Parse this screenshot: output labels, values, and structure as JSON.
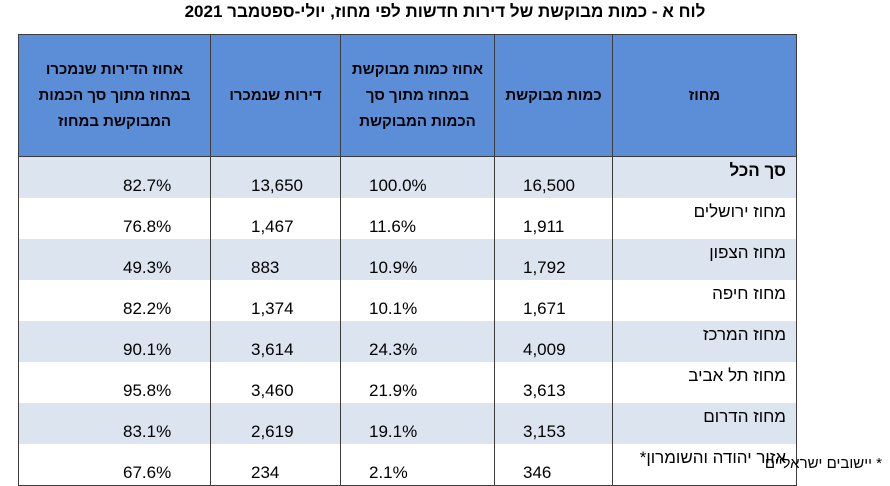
{
  "title": "לוח א - כמות מבוקשת של דירות חדשות לפי מחוז, יולי-ספטמבר 2021",
  "headers": {
    "district": "מחוז",
    "quantity": "כמות מבוקשת",
    "pct_of_total": "אחוז כמות מבוקשת במחוז מתוך סך הכמות המבוקשת",
    "sold": "דירות שנמכרו",
    "pct_sold": "אחוז הדירות שנמכרו במחוז מתוך סך הכמות המבוקשת במחוז"
  },
  "rows": [
    {
      "district": "סך הכל",
      "quantity": "16,500",
      "pct_of_total": "100.0%",
      "sold": "13,650",
      "pct_sold": "82.7%"
    },
    {
      "district": "מחוז ירושלים",
      "quantity": "1,911",
      "pct_of_total": "11.6%",
      "sold": "1,467",
      "pct_sold": "76.8%"
    },
    {
      "district": "מחוז הצפון",
      "quantity": "1,792",
      "pct_of_total": "10.9%",
      "sold": "883",
      "pct_sold": "49.3%"
    },
    {
      "district": "מחוז חיפה",
      "quantity": "1,671",
      "pct_of_total": "10.1%",
      "sold": "1,374",
      "pct_sold": "82.2%"
    },
    {
      "district": "מחוז המרכז",
      "quantity": "4,009",
      "pct_of_total": "24.3%",
      "sold": "3,614",
      "pct_sold": "90.1%"
    },
    {
      "district": "מחוז תל אביב",
      "quantity": "3,613",
      "pct_of_total": "21.9%",
      "sold": "3,460",
      "pct_sold": "95.8%"
    },
    {
      "district": "מחוז הדרום",
      "quantity": "3,153",
      "pct_of_total": "19.1%",
      "sold": "2,619",
      "pct_sold": "83.1%"
    },
    {
      "district": "אזור יהודה והשומרון*",
      "quantity": "346",
      "pct_of_total": "2.1%",
      "sold": "234",
      "pct_sold": "67.6%"
    }
  ],
  "footnote": "* יישובים ישראליים",
  "colors": {
    "header_bg": "#5b8ed6",
    "band_bg": "#dce4f0"
  }
}
